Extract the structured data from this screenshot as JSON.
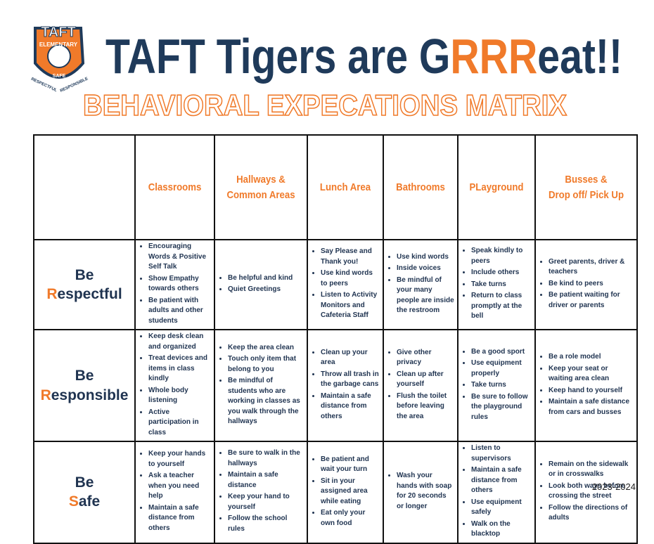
{
  "logo": {
    "name": "TAFT",
    "banner": "ELEMENTARY",
    "center": "SAFE",
    "left": "RESPECTFUL",
    "right": "RESPONSIBLE"
  },
  "header": {
    "title": [
      {
        "text": "TAFT Tigers are G",
        "accent": false
      },
      {
        "text": "RRR",
        "accent": true
      },
      {
        "text": "eat!!",
        "accent": false
      }
    ],
    "subtitle": "BEHAVIORAL EXPECATIONS MATRIX"
  },
  "table": {
    "columns": [
      [
        "Classrooms"
      ],
      [
        "Hallways &",
        "Common Areas"
      ],
      [
        "Lunch Area"
      ],
      [
        "Bathrooms"
      ],
      [
        "PLayground"
      ],
      [
        "Busses &",
        "Drop off/ Pick Up"
      ]
    ],
    "rows": [
      {
        "label": [
          [
            {
              "text": "Be ",
              "accent": false
            },
            {
              "text": "R",
              "accent": true
            },
            {
              "text": "espectful",
              "accent": false
            }
          ]
        ],
        "cells": [
          [
            "Encouraging Words & Positive Self Talk",
            "Show Empathy towards others",
            "Be patient with adults and other students"
          ],
          [
            "Be helpful and kind",
            "Quiet Greetings"
          ],
          [
            "Say Please and Thank you!",
            "Use kind words to peers",
            "Listen to Activity Monitors and Cafeteria Staff"
          ],
          [
            "Use kind words",
            "Inside voices",
            "Be mindful of your many people are inside the restroom"
          ],
          [
            "Speak kindly to peers",
            "Include others",
            "Take turns",
            "Return to class promptly at the bell"
          ],
          [
            "Greet parents, driver & teachers",
            "Be kind to peers",
            "Be patient waiting for driver or parents"
          ]
        ]
      },
      {
        "label": [
          [
            {
              "text": "Be ",
              "accent": false
            },
            {
              "text": "R",
              "accent": true
            },
            {
              "text": "esponsible",
              "accent": false
            }
          ]
        ],
        "cells": [
          [
            "Keep desk clean and organized",
            "Treat devices and items in class kindly",
            "Whole body listening",
            "Active participation in class"
          ],
          [
            "Keep the area clean",
            "Touch only item that belong to you",
            "Be mindful of students who are working in classes as you walk through the hallways"
          ],
          [
            "Clean up your area",
            "Throw all trash in the garbage cans",
            "Maintain a safe distance from others"
          ],
          [
            "Give other privacy",
            "Clean up after yourself",
            "Flush the toilet before leaving the area"
          ],
          [
            "Be a good sport",
            "Use equipment properly",
            "Take turns",
            "Be sure to follow the playground rules"
          ],
          [
            "Be a role model",
            "Keep your seat or waiting area clean",
            "Keep hand to yourself",
            "Maintain a safe distance from cars and busses"
          ]
        ]
      },
      {
        "label": [
          [
            {
              "text": "Be",
              "accent": false
            }
          ],
          [
            {
              "text": "S",
              "accent": true
            },
            {
              "text": "afe",
              "accent": false
            }
          ]
        ],
        "cells": [
          [
            "Keep your hands to yourself",
            "Ask a teacher when you need help",
            "Maintain a safe distance from others"
          ],
          [
            "Be sure to walk in the hallways",
            "Maintain a safe distance",
            "Keep your hand to yourself",
            "Follow the school rules"
          ],
          [
            "Be patient and wait your turn",
            "Sit in your assigned area while eating",
            "Eat only your own food"
          ],
          [
            "Wash your hands with soap for 20 seconds or longer"
          ],
          [
            "Listen to supervisors",
            "Maintain a safe distance from others",
            "Use equipment safely",
            "Walk on the blacktop"
          ],
          [
            "Remain on the sidewalk or in crosswalks",
            "Look both ways before crossing the street",
            "Follow the directions of adults"
          ]
        ]
      }
    ]
  },
  "footer": "2023-2024"
}
